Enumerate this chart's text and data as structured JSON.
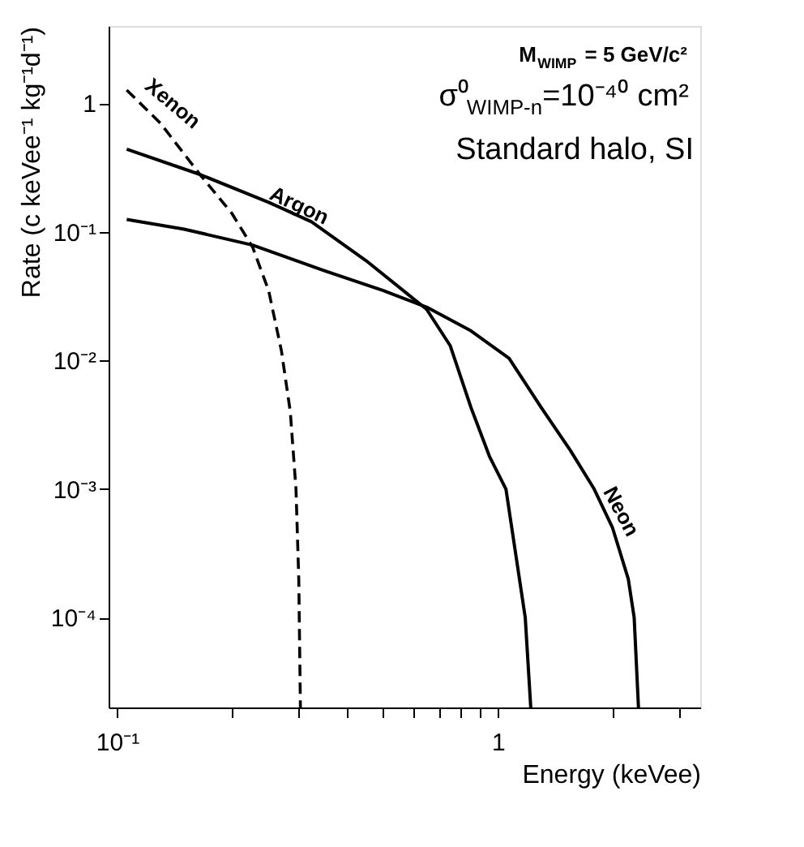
{
  "chart_data": {
    "type": "line",
    "xlabel": "Energy (keVee)",
    "ylabel": "Rate (c keVee⁻¹ kg⁻¹d⁻¹)",
    "log": "xy",
    "grid": false,
    "marker": "none",
    "xlim": [
      0.095,
      3.4
    ],
    "ylim": [
      2e-05,
      4
    ],
    "xticks": [
      {
        "value": 0.1,
        "label": "10⁻¹"
      },
      {
        "value": 0.2,
        "label": null
      },
      {
        "value": 0.3,
        "label": null
      },
      {
        "value": 0.4,
        "label": null
      },
      {
        "value": 0.5,
        "label": null
      },
      {
        "value": 0.6,
        "label": null
      },
      {
        "value": 0.7,
        "label": null
      },
      {
        "value": 0.8,
        "label": null
      },
      {
        "value": 0.9,
        "label": null
      },
      1,
      {
        "value": 2,
        "label": null
      },
      {
        "value": 3,
        "label": null
      }
    ],
    "yticks": [
      {
        "value": 0.0001,
        "label": "10⁻⁴"
      },
      {
        "value": 0.001,
        "label": "10⁻³"
      },
      {
        "value": 0.01,
        "label": "10⁻²"
      },
      {
        "value": 0.1,
        "label": "10⁻¹"
      },
      1
    ],
    "series": [
      {
        "name": "Xenon",
        "color": "#000000",
        "line_style": "dashed",
        "x": [
          0.106,
          0.13,
          0.165,
          0.2,
          0.227,
          0.25,
          0.27,
          0.285,
          0.295,
          0.3,
          0.303
        ],
        "values": [
          1.27,
          0.7,
          0.28,
          0.14,
          0.076,
          0.035,
          0.012,
          0.004,
          0.001,
          0.0002,
          2e-05
        ]
      },
      {
        "name": "Argon",
        "color": "#000000",
        "line_style": "solid",
        "x": [
          0.106,
          0.165,
          0.25,
          0.324,
          0.45,
          0.65,
          0.75,
          0.85,
          0.95,
          1.05,
          1.18,
          1.22
        ],
        "values": [
          0.44,
          0.28,
          0.17,
          0.12,
          0.06,
          0.025,
          0.013,
          0.0043,
          0.0018,
          0.001,
          0.0001,
          2e-05
        ]
      },
      {
        "name": "Neon",
        "color": "#000000",
        "line_style": "solid",
        "x": [
          0.106,
          0.15,
          0.227,
          0.35,
          0.5,
          0.65,
          0.85,
          1.07,
          1.3,
          1.55,
          1.79,
          2.0,
          2.2,
          2.28,
          2.34
        ],
        "values": [
          0.125,
          0.105,
          0.079,
          0.05,
          0.035,
          0.026,
          0.017,
          0.0104,
          0.0043,
          0.002,
          0.001,
          0.0005,
          0.0002,
          0.0001,
          2e-05
        ]
      }
    ],
    "annotations": [
      "M$_{WIMP}$ = 5 GeV/c²",
      "σ⁰$_{WIMP-n}$=10⁻⁴⁰  cm²",
      "Standard halo, SI"
    ]
  }
}
